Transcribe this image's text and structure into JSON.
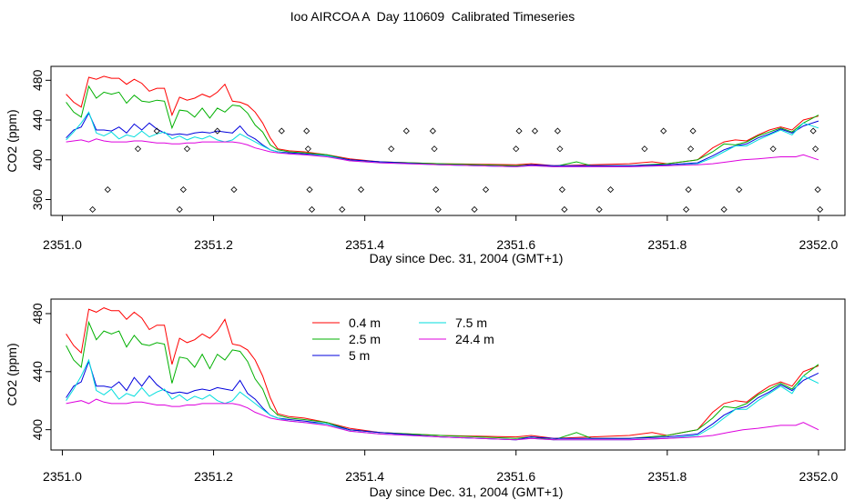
{
  "title": "Ioo AIRCOA A  Day 110609  Calibrated Timeseries",
  "chart_data": [
    {
      "type": "line",
      "title": "Ioo AIRCOA A  Day 110609  Calibrated Timeseries",
      "xlabel": "Day since Dec. 31, 2004 (GMT+1)",
      "ylabel": "CO2 (ppm)",
      "xlim": [
        2350.985,
        2352.035
      ],
      "ylim": [
        344,
        494
      ],
      "xticks": [
        "2351.0",
        "2351.2",
        "2351.4",
        "2351.6",
        "2351.8",
        "2352.0"
      ],
      "yticks": [
        "360",
        "400",
        "440",
        "480"
      ],
      "grid": false,
      "legend": "none",
      "series_from": "shared",
      "calibration_points": {
        "marker": "open-diamond",
        "x": [
          2351.04,
          2351.06,
          2351.1,
          2351.125,
          2351.155,
          2351.16,
          2351.165,
          2351.205,
          2351.227,
          2351.29,
          2351.323,
          2351.325,
          2351.327,
          2351.33,
          2351.37,
          2351.395,
          2351.435,
          2351.455,
          2351.49,
          2351.492,
          2351.494,
          2351.497,
          2351.545,
          2351.56,
          2351.6,
          2351.604,
          2351.625,
          2351.655,
          2351.658,
          2351.661,
          2351.664,
          2351.71,
          2351.725,
          2351.77,
          2351.795,
          2351.825,
          2351.828,
          2351.831,
          2351.834,
          2351.875,
          2351.895,
          2351.94,
          2351.993,
          2351.996,
          2351.999,
          2352.002
        ],
        "y": [
          350,
          370,
          411,
          429,
          350,
          370,
          411,
          429,
          370,
          429,
          429,
          411,
          370,
          350,
          350,
          370,
          411,
          429,
          429,
          411,
          370,
          350,
          350,
          370,
          411,
          429,
          429,
          429,
          411,
          370,
          350,
          350,
          370,
          411,
          429,
          350,
          370,
          411,
          429,
          350,
          370,
          411,
          429,
          411,
          370,
          350
        ]
      }
    },
    {
      "type": "line",
      "xlabel": "Day since Dec. 31, 2004 (GMT+1)",
      "ylabel": "CO2 (ppm)",
      "xlim": [
        2350.985,
        2352.035
      ],
      "ylim": [
        386,
        490
      ],
      "xticks": [
        "2351.0",
        "2351.2",
        "2351.4",
        "2351.6",
        "2351.8",
        "2352.0"
      ],
      "yticks": [
        "400",
        "440",
        "480"
      ],
      "grid": false,
      "legend": "top-left, inside plot, two columns",
      "series_from": "shared"
    }
  ],
  "series": [
    {
      "name": "0.4 m",
      "color": "#ff0000",
      "points": [
        [
          2351.005,
          466
        ],
        [
          2351.015,
          458
        ],
        [
          2351.025,
          453
        ],
        [
          2351.035,
          483
        ],
        [
          2351.045,
          481
        ],
        [
          2351.055,
          484
        ],
        [
          2351.065,
          482
        ],
        [
          2351.075,
          482
        ],
        [
          2351.085,
          476
        ],
        [
          2351.095,
          481
        ],
        [
          2351.105,
          477
        ],
        [
          2351.115,
          469
        ],
        [
          2351.125,
          472
        ],
        [
          2351.135,
          472
        ],
        [
          2351.145,
          445
        ],
        [
          2351.155,
          463
        ],
        [
          2351.165,
          460
        ],
        [
          2351.175,
          462
        ],
        [
          2351.185,
          466
        ],
        [
          2351.195,
          463
        ],
        [
          2351.205,
          468
        ],
        [
          2351.215,
          476
        ],
        [
          2351.225,
          459
        ],
        [
          2351.235,
          458
        ],
        [
          2351.245,
          455
        ],
        [
          2351.255,
          448
        ],
        [
          2351.265,
          437
        ],
        [
          2351.275,
          422
        ],
        [
          2351.285,
          411
        ],
        [
          2351.3,
          409
        ],
        [
          2351.32,
          408
        ],
        [
          2351.35,
          405
        ],
        [
          2351.38,
          401
        ],
        [
          2351.42,
          398
        ],
        [
          2351.5,
          396
        ],
        [
          2351.6,
          395
        ],
        [
          2351.62,
          396
        ],
        [
          2351.65,
          394
        ],
        [
          2351.7,
          395
        ],
        [
          2351.75,
          396
        ],
        [
          2351.78,
          398
        ],
        [
          2351.8,
          396
        ],
        [
          2351.82,
          398
        ],
        [
          2351.84,
          400
        ],
        [
          2351.86,
          412
        ],
        [
          2351.875,
          418
        ],
        [
          2351.89,
          420
        ],
        [
          2351.905,
          419
        ],
        [
          2351.92,
          425
        ],
        [
          2351.935,
          430
        ],
        [
          2351.95,
          433
        ],
        [
          2351.965,
          430
        ],
        [
          2351.98,
          440
        ],
        [
          2352.0,
          444
        ]
      ]
    },
    {
      "name": "2.5 m",
      "color": "#00b000",
      "points": [
        [
          2351.005,
          458
        ],
        [
          2351.015,
          448
        ],
        [
          2351.025,
          443
        ],
        [
          2351.035,
          474
        ],
        [
          2351.045,
          462
        ],
        [
          2351.055,
          468
        ],
        [
          2351.065,
          466
        ],
        [
          2351.075,
          468
        ],
        [
          2351.085,
          457
        ],
        [
          2351.095,
          465
        ],
        [
          2351.105,
          459
        ],
        [
          2351.115,
          458
        ],
        [
          2351.125,
          460
        ],
        [
          2351.135,
          459
        ],
        [
          2351.145,
          432
        ],
        [
          2351.155,
          450
        ],
        [
          2351.165,
          449
        ],
        [
          2351.175,
          443
        ],
        [
          2351.185,
          452
        ],
        [
          2351.195,
          442
        ],
        [
          2351.205,
          452
        ],
        [
          2351.215,
          448
        ],
        [
          2351.225,
          455
        ],
        [
          2351.235,
          454
        ],
        [
          2351.245,
          447
        ],
        [
          2351.255,
          435
        ],
        [
          2351.265,
          428
        ],
        [
          2351.275,
          415
        ],
        [
          2351.285,
          410
        ],
        [
          2351.3,
          408
        ],
        [
          2351.32,
          407
        ],
        [
          2351.35,
          405
        ],
        [
          2351.38,
          400
        ],
        [
          2351.42,
          398
        ],
        [
          2351.5,
          396
        ],
        [
          2351.6,
          394
        ],
        [
          2351.62,
          395
        ],
        [
          2351.65,
          393
        ],
        [
          2351.68,
          398
        ],
        [
          2351.7,
          394
        ],
        [
          2351.75,
          394
        ],
        [
          2351.8,
          396
        ],
        [
          2351.84,
          400
        ],
        [
          2351.86,
          408
        ],
        [
          2351.875,
          416
        ],
        [
          2351.89,
          415
        ],
        [
          2351.905,
          418
        ],
        [
          2351.92,
          424
        ],
        [
          2351.935,
          428
        ],
        [
          2351.95,
          432
        ],
        [
          2351.965,
          428
        ],
        [
          2351.98,
          437
        ],
        [
          2352.0,
          445
        ]
      ]
    },
    {
      "name": "5 m",
      "color": "#0000dd",
      "points": [
        [
          2351.005,
          422
        ],
        [
          2351.015,
          430
        ],
        [
          2351.025,
          433
        ],
        [
          2351.035,
          447
        ],
        [
          2351.045,
          430
        ],
        [
          2351.055,
          430
        ],
        [
          2351.065,
          429
        ],
        [
          2351.075,
          433
        ],
        [
          2351.085,
          427
        ],
        [
          2351.095,
          436
        ],
        [
          2351.105,
          430
        ],
        [
          2351.115,
          437
        ],
        [
          2351.125,
          431
        ],
        [
          2351.135,
          427
        ],
        [
          2351.145,
          425
        ],
        [
          2351.155,
          426
        ],
        [
          2351.165,
          425
        ],
        [
          2351.175,
          427
        ],
        [
          2351.185,
          428
        ],
        [
          2351.195,
          427
        ],
        [
          2351.205,
          429
        ],
        [
          2351.215,
          428
        ],
        [
          2351.225,
          427
        ],
        [
          2351.235,
          434
        ],
        [
          2351.245,
          425
        ],
        [
          2351.255,
          421
        ],
        [
          2351.265,
          415
        ],
        [
          2351.275,
          410
        ],
        [
          2351.285,
          408
        ],
        [
          2351.3,
          407
        ],
        [
          2351.32,
          406
        ],
        [
          2351.35,
          404
        ],
        [
          2351.38,
          400
        ],
        [
          2351.42,
          398
        ],
        [
          2351.5,
          395
        ],
        [
          2351.6,
          393
        ],
        [
          2351.62,
          395
        ],
        [
          2351.65,
          394
        ],
        [
          2351.7,
          394
        ],
        [
          2351.75,
          394
        ],
        [
          2351.8,
          395
        ],
        [
          2351.84,
          397
        ],
        [
          2351.86,
          404
        ],
        [
          2351.875,
          410
        ],
        [
          2351.89,
          414
        ],
        [
          2351.905,
          416
        ],
        [
          2351.92,
          422
        ],
        [
          2351.935,
          426
        ],
        [
          2351.95,
          431
        ],
        [
          2351.965,
          427
        ],
        [
          2351.98,
          434
        ],
        [
          2352.0,
          439
        ]
      ]
    },
    {
      "name": "7.5 m",
      "color": "#00dddd",
      "points": [
        [
          2351.005,
          420
        ],
        [
          2351.015,
          428
        ],
        [
          2351.025,
          437
        ],
        [
          2351.035,
          448
        ],
        [
          2351.045,
          427
        ],
        [
          2351.055,
          424
        ],
        [
          2351.065,
          428
        ],
        [
          2351.075,
          421
        ],
        [
          2351.085,
          425
        ],
        [
          2351.095,
          423
        ],
        [
          2351.105,
          429
        ],
        [
          2351.115,
          423
        ],
        [
          2351.125,
          426
        ],
        [
          2351.135,
          428
        ],
        [
          2351.145,
          421
        ],
        [
          2351.155,
          424
        ],
        [
          2351.165,
          420
        ],
        [
          2351.175,
          423
        ],
        [
          2351.185,
          421
        ],
        [
          2351.195,
          424
        ],
        [
          2351.205,
          420
        ],
        [
          2351.215,
          418
        ],
        [
          2351.225,
          420
        ],
        [
          2351.235,
          426
        ],
        [
          2351.245,
          422
        ],
        [
          2351.255,
          418
        ],
        [
          2351.265,
          414
        ],
        [
          2351.275,
          410
        ],
        [
          2351.285,
          408
        ],
        [
          2351.3,
          406
        ],
        [
          2351.32,
          405
        ],
        [
          2351.35,
          404
        ],
        [
          2351.38,
          399
        ],
        [
          2351.42,
          397
        ],
        [
          2351.5,
          395
        ],
        [
          2351.6,
          393
        ],
        [
          2351.62,
          394
        ],
        [
          2351.65,
          393
        ],
        [
          2351.7,
          393
        ],
        [
          2351.75,
          393
        ],
        [
          2351.8,
          394
        ],
        [
          2351.84,
          396
        ],
        [
          2351.86,
          402
        ],
        [
          2351.875,
          408
        ],
        [
          2351.89,
          414
        ],
        [
          2351.905,
          414
        ],
        [
          2351.92,
          420
        ],
        [
          2351.935,
          425
        ],
        [
          2351.95,
          430
        ],
        [
          2351.965,
          425
        ],
        [
          2351.98,
          437
        ],
        [
          2352.0,
          432
        ]
      ]
    },
    {
      "name": "24.4 m",
      "color": "#dd00dd",
      "points": [
        [
          2351.005,
          418
        ],
        [
          2351.015,
          419
        ],
        [
          2351.025,
          420
        ],
        [
          2351.035,
          418
        ],
        [
          2351.045,
          421
        ],
        [
          2351.055,
          419
        ],
        [
          2351.065,
          418
        ],
        [
          2351.075,
          418
        ],
        [
          2351.085,
          418
        ],
        [
          2351.095,
          419
        ],
        [
          2351.105,
          419
        ],
        [
          2351.115,
          418
        ],
        [
          2351.125,
          417
        ],
        [
          2351.135,
          417
        ],
        [
          2351.145,
          416
        ],
        [
          2351.155,
          416
        ],
        [
          2351.165,
          417
        ],
        [
          2351.175,
          417
        ],
        [
          2351.185,
          418
        ],
        [
          2351.195,
          418
        ],
        [
          2351.205,
          418
        ],
        [
          2351.215,
          418
        ],
        [
          2351.225,
          418
        ],
        [
          2351.235,
          417
        ],
        [
          2351.245,
          415
        ],
        [
          2351.255,
          412
        ],
        [
          2351.265,
          410
        ],
        [
          2351.275,
          408
        ],
        [
          2351.285,
          407
        ],
        [
          2351.3,
          406
        ],
        [
          2351.32,
          405
        ],
        [
          2351.35,
          403
        ],
        [
          2351.38,
          399
        ],
        [
          2351.42,
          397
        ],
        [
          2351.5,
          395
        ],
        [
          2351.6,
          393
        ],
        [
          2351.62,
          394
        ],
        [
          2351.65,
          393
        ],
        [
          2351.7,
          393
        ],
        [
          2351.75,
          393
        ],
        [
          2351.8,
          394
        ],
        [
          2351.84,
          395
        ],
        [
          2351.86,
          396
        ],
        [
          2351.88,
          398
        ],
        [
          2351.9,
          400
        ],
        [
          2351.92,
          401
        ],
        [
          2351.95,
          403
        ],
        [
          2351.97,
          403
        ],
        [
          2351.98,
          405
        ],
        [
          2352.0,
          400
        ]
      ]
    }
  ]
}
